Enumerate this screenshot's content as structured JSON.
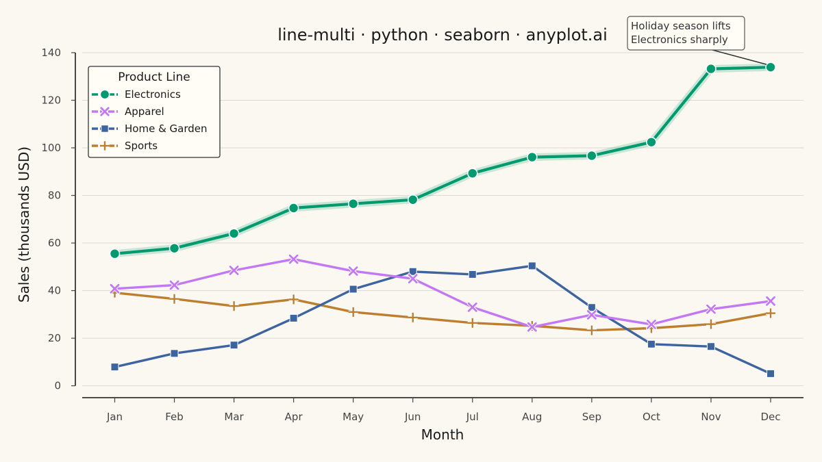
{
  "chart_data": {
    "type": "line",
    "title": "line-multi · python · seaborn · anyplot.ai",
    "xlabel": "Month",
    "ylabel": "Sales (thousands USD)",
    "categories": [
      "Jan",
      "Feb",
      "Mar",
      "Apr",
      "May",
      "Jun",
      "Jul",
      "Aug",
      "Sep",
      "Oct",
      "Nov",
      "Dec"
    ],
    "ylim": [
      -5,
      142
    ],
    "yticks": [
      0,
      20,
      40,
      60,
      80,
      100,
      120,
      140
    ],
    "grid": "horizontal",
    "legend": {
      "title": "Product Line",
      "placement": "top-left"
    },
    "series": [
      {
        "name": "Electronics",
        "color": "#009A6E",
        "marker": "circle",
        "values": [
          55.5,
          57.8,
          64.0,
          74.7,
          76.5,
          78.2,
          89.3,
          96.1,
          96.7,
          102.4,
          133.2,
          133.9
        ]
      },
      {
        "name": "Apparel",
        "color": "#C477F2",
        "marker": "x",
        "values": [
          40.8,
          42.3,
          48.5,
          53.2,
          48.2,
          45.0,
          33.0,
          24.7,
          29.8,
          25.8,
          32.2,
          35.6
        ]
      },
      {
        "name": "Home & Garden",
        "color": "#3E64A0",
        "marker": "square",
        "values": [
          7.9,
          13.6,
          17.1,
          28.4,
          40.6,
          48.0,
          46.8,
          50.4,
          32.9,
          17.5,
          16.5,
          5.1
        ]
      },
      {
        "name": "Sports",
        "color": "#BC7F30",
        "marker": "plus",
        "values": [
          39.1,
          36.5,
          33.5,
          36.3,
          31.0,
          28.7,
          26.4,
          25.2,
          23.3,
          24.2,
          25.9,
          30.5
        ]
      }
    ],
    "annotation": {
      "lines": [
        "Holiday season lifts",
        "Electronics sharply"
      ],
      "target_series": "Electronics",
      "target_category": "Dec"
    }
  }
}
